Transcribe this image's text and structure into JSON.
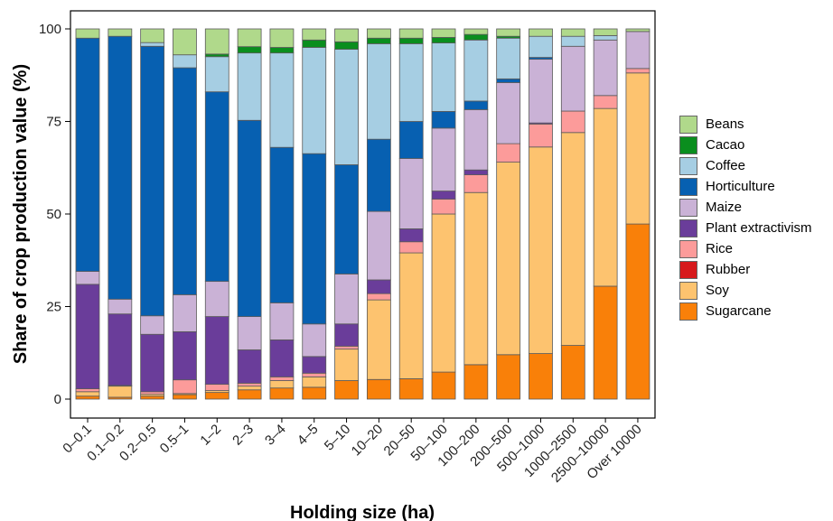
{
  "chart_data": {
    "type": "bar",
    "stacked": true,
    "xlabel": "Holding size (ha)",
    "ylabel": "Share of crop production value (%)",
    "ylim": [
      0,
      100
    ],
    "yticks": [
      0,
      25,
      50,
      75,
      100
    ],
    "grid": false,
    "legend_position": "right",
    "categories": [
      "0–0.1",
      "0.1–0.2",
      "0.2–0.5",
      "0.5–1",
      "1–2",
      "2–3",
      "3–4",
      "4–5",
      "5–10",
      "10–20",
      "20–50",
      "50–100",
      "100–200",
      "200–500",
      "500–1000",
      "1000–2500",
      "2500–10000",
      "Over 10000"
    ],
    "series": [
      {
        "name": "Sugarcane",
        "color": "#F98009",
        "values": [
          0.8,
          0.5,
          0.8,
          1.2,
          1.8,
          2.5,
          3.0,
          3.2,
          5.0,
          5.3,
          5.5,
          7.3,
          9.3,
          12.0,
          12.3,
          14.5,
          30.5,
          47.3
        ]
      },
      {
        "name": "Soy",
        "color": "#FDC36F",
        "values": [
          1.2,
          3.0,
          0.5,
          0.3,
          0.5,
          1.0,
          2.0,
          2.8,
          8.5,
          21.5,
          34.0,
          42.7,
          46.5,
          52.0,
          55.8,
          57.5,
          48.0,
          40.8
        ]
      },
      {
        "name": "Rubber",
        "color": "#D7191C",
        "values": [
          0,
          0,
          0,
          0,
          0,
          0,
          0,
          0,
          0,
          0,
          0,
          0,
          0,
          0,
          0,
          0,
          0,
          0
        ]
      },
      {
        "name": "Rice",
        "color": "#FC9B9A",
        "values": [
          0.8,
          0.2,
          0.7,
          3.7,
          1.7,
          0.8,
          1.0,
          1.0,
          0.8,
          1.7,
          3.0,
          4.0,
          4.8,
          5.0,
          6.2,
          5.8,
          3.5,
          1.2
        ]
      },
      {
        "name": "Plant extractivism",
        "color": "#6A3D9A",
        "values": [
          28.2,
          19.3,
          15.5,
          13.0,
          18.3,
          9.0,
          10.0,
          4.5,
          6.0,
          3.7,
          3.5,
          2.2,
          1.3,
          0,
          0.3,
          0,
          0,
          0
        ]
      },
      {
        "name": "Maize",
        "color": "#CAB2D6",
        "values": [
          3.5,
          4.0,
          5.0,
          10.0,
          9.5,
          9.0,
          10.0,
          8.8,
          13.5,
          18.5,
          19.0,
          17.0,
          16.3,
          16.5,
          17.2,
          17.5,
          15.0,
          10.0
        ]
      },
      {
        "name": "Horticulture",
        "color": "#0760B1",
        "values": [
          63.0,
          71.0,
          72.8,
          61.3,
          51.2,
          53.0,
          42.0,
          46.0,
          29.5,
          19.5,
          10.0,
          4.5,
          2.3,
          1.0,
          0.5,
          0,
          0,
          0
        ]
      },
      {
        "name": "Coffee",
        "color": "#A6CEE3",
        "values": [
          0,
          0,
          1.0,
          3.5,
          9.5,
          18.2,
          25.5,
          28.7,
          31.2,
          25.8,
          21.0,
          18.5,
          16.5,
          11.0,
          5.7,
          2.7,
          1.2,
          0
        ]
      },
      {
        "name": "Cacao",
        "color": "#0A8E1E",
        "values": [
          0,
          0,
          0,
          0,
          0.7,
          1.7,
          1.5,
          2.0,
          2.0,
          1.5,
          1.5,
          1.5,
          1.5,
          0.5,
          0,
          0,
          0,
          0
        ]
      },
      {
        "name": "Beans",
        "color": "#B0D98B",
        "values": [
          2.5,
          2.0,
          3.7,
          7.0,
          6.8,
          4.8,
          5.0,
          3.0,
          3.5,
          2.5,
          2.5,
          2.3,
          1.5,
          2.0,
          2.0,
          2.0,
          1.8,
          0.7
        ]
      }
    ]
  },
  "legend_order": [
    "Beans",
    "Cacao",
    "Coffee",
    "Horticulture",
    "Maize",
    "Plant extractivism",
    "Rice",
    "Rubber",
    "Soy",
    "Sugarcane"
  ]
}
